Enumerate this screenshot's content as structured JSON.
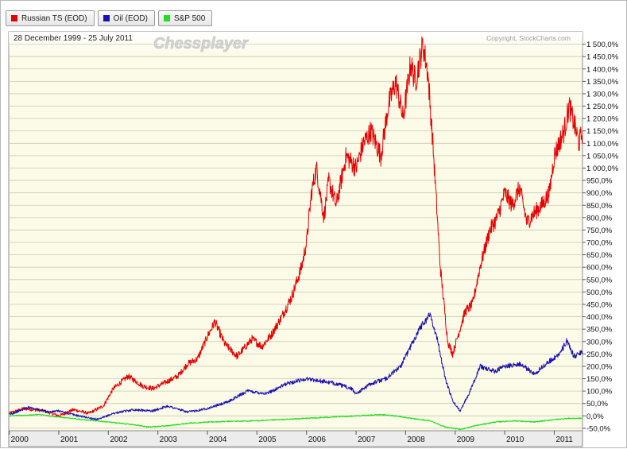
{
  "legend": [
    {
      "label": "Russian TS (EOD)",
      "color": "#e60000"
    },
    {
      "label": "Oil (EOD)",
      "color": "#1a10b0"
    },
    {
      "label": "S&P 500",
      "color": "#22dd22"
    }
  ],
  "header": {
    "date_range": "28 December 1999 - 25 July 2011",
    "watermark": "Chessplayer",
    "copyright": "Copyright, StockCharts.com"
  },
  "chart_data": {
    "type": "line",
    "x_ticks": [
      "2000",
      "2001",
      "2002",
      "2003",
      "2004",
      "2005",
      "2006",
      "2007",
      "2008",
      "2009",
      "2010",
      "2011"
    ],
    "x_range": [
      1999.99,
      2011.57
    ],
    "ylim": [
      -60,
      1550
    ],
    "y_ticks": [
      -50,
      0,
      50,
      100,
      150,
      200,
      250,
      300,
      350,
      400,
      450,
      500,
      550,
      600,
      650,
      700,
      750,
      800,
      850,
      900,
      950,
      1000,
      1050,
      1100,
      1150,
      1200,
      1250,
      1300,
      1350,
      1400,
      1450,
      1500
    ],
    "y_tick_labels": [
      "-50,0%",
      "0,0%",
      "50,0%",
      "100,0%",
      "150,0%",
      "200,0%",
      "250,0%",
      "300,0%",
      "350,0%",
      "400,0%",
      "450,0%",
      "500,0%",
      "550,0%",
      "600,0%",
      "650,0%",
      "700,0%",
      "750,0%",
      "800,0%",
      "850,0%",
      "900,0%",
      "950,0%",
      "1 000,0%",
      "1 050,0%",
      "1 100,0%",
      "1 150,0%",
      "1 200,0%",
      "1 250,0%",
      "1 300,0%",
      "1 350,0%",
      "1 400,0%",
      "1 450,0%",
      "1 500,0%"
    ],
    "grid": true,
    "series": [
      {
        "name": "Russian TS (EOD)",
        "color": "#e60000",
        "x": [
          2000,
          2000.3,
          2000.7,
          2001,
          2001.3,
          2001.6,
          2001.9,
          2002.1,
          2002.4,
          2002.7,
          2002.9,
          2003.2,
          2003.4,
          2003.6,
          2003.8,
          2004.0,
          2004.15,
          2004.35,
          2004.6,
          2004.9,
          2005.1,
          2005.3,
          2005.5,
          2005.7,
          2005.9,
          2006.0,
          2006.1,
          2006.2,
          2006.35,
          2006.45,
          2006.6,
          2006.8,
          2007.0,
          2007.15,
          2007.3,
          2007.5,
          2007.65,
          2007.8,
          2007.95,
          2008.1,
          2008.2,
          2008.35,
          2008.45,
          2008.55,
          2008.7,
          2008.85,
          2008.95,
          2009.05,
          2009.2,
          2009.35,
          2009.5,
          2009.7,
          2009.85,
          2010.0,
          2010.15,
          2010.3,
          2010.45,
          2010.6,
          2010.75,
          2010.9,
          2011.0,
          2011.1,
          2011.2,
          2011.3,
          2011.4,
          2011.5,
          2011.57
        ],
        "y": [
          10,
          30,
          20,
          0,
          25,
          10,
          40,
          110,
          160,
          120,
          110,
          140,
          160,
          210,
          230,
          320,
          380,
          290,
          240,
          310,
          280,
          330,
          400,
          480,
          600,
          700,
          900,
          1000,
          800,
          950,
          850,
          1050,
          1000,
          1100,
          1150,
          1050,
          1250,
          1350,
          1200,
          1420,
          1350,
          1500,
          1380,
          1100,
          600,
          300,
          250,
          320,
          420,
          450,
          600,
          750,
          800,
          900,
          850,
          920,
          780,
          820,
          850,
          900,
          1050,
          1100,
          1150,
          1250,
          1180,
          1100,
          1150
        ]
      },
      {
        "name": "Oil (EOD)",
        "color": "#1a10b0",
        "x": [
          2000,
          2000.4,
          2000.8,
          2001,
          2001.4,
          2001.8,
          2002.1,
          2002.5,
          2002.9,
          2003.2,
          2003.6,
          2004.0,
          2004.4,
          2004.8,
          2005.2,
          2005.6,
          2006.0,
          2006.3,
          2006.6,
          2006.9,
          2007.0,
          2007.3,
          2007.6,
          2007.9,
          2008.1,
          2008.3,
          2008.5,
          2008.65,
          2008.8,
          2008.95,
          2009.1,
          2009.3,
          2009.5,
          2009.8,
          2010.0,
          2010.3,
          2010.6,
          2010.9,
          2011.1,
          2011.25,
          2011.4,
          2011.57
        ],
        "y": [
          5,
          35,
          15,
          20,
          0,
          -15,
          10,
          25,
          20,
          40,
          15,
          30,
          55,
          100,
          90,
          130,
          150,
          140,
          130,
          110,
          90,
          130,
          150,
          200,
          280,
          360,
          410,
          300,
          150,
          60,
          20,
          100,
          200,
          180,
          200,
          210,
          170,
          220,
          250,
          300,
          240,
          260
        ]
      },
      {
        "name": "S&P 500",
        "color": "#22dd22",
        "x": [
          2000,
          2000.6,
          2001,
          2001.5,
          2002,
          2002.5,
          2002.8,
          2003.2,
          2003.6,
          2004,
          2004.5,
          2005,
          2005.5,
          2006,
          2006.5,
          2007,
          2007.5,
          2007.8,
          2008.1,
          2008.5,
          2008.8,
          2009.1,
          2009.4,
          2009.8,
          2010.2,
          2010.6,
          2011,
          2011.3,
          2011.57
        ],
        "y": [
          0,
          5,
          -5,
          -15,
          -25,
          -35,
          -45,
          -40,
          -30,
          -25,
          -22,
          -20,
          -15,
          -10,
          -5,
          0,
          5,
          0,
          -10,
          -20,
          -45,
          -55,
          -40,
          -25,
          -20,
          -25,
          -15,
          -10,
          -10
        ]
      }
    ]
  }
}
